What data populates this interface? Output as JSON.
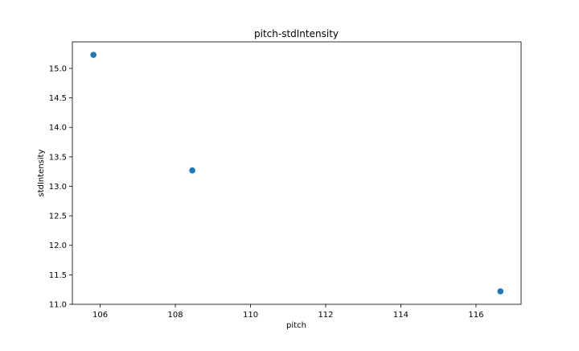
{
  "chart_data": {
    "type": "scatter",
    "title": "pitch-stdIntensity",
    "xlabel": "pitch",
    "ylabel": "stdIntensity",
    "xlim": [
      105.26,
      117.2
    ],
    "ylim": [
      11.0,
      15.45
    ],
    "xticks": [
      106,
      108,
      110,
      112,
      114,
      116
    ],
    "xtick_labels": [
      "106",
      "108",
      "110",
      "112",
      "114",
      "116"
    ],
    "yticks": [
      11.0,
      11.5,
      12.0,
      12.5,
      13.0,
      13.5,
      14.0,
      14.5,
      15.0
    ],
    "ytick_labels": [
      "11.0",
      "11.5",
      "12.0",
      "12.5",
      "13.0",
      "13.5",
      "14.0",
      "14.5",
      "15.0"
    ],
    "grid": false,
    "series": [
      {
        "color": "#1f77b4",
        "points": [
          {
            "x": 105.82,
            "y": 15.23
          },
          {
            "x": 108.45,
            "y": 13.27
          },
          {
            "x": 116.65,
            "y": 11.22
          }
        ]
      }
    ]
  }
}
